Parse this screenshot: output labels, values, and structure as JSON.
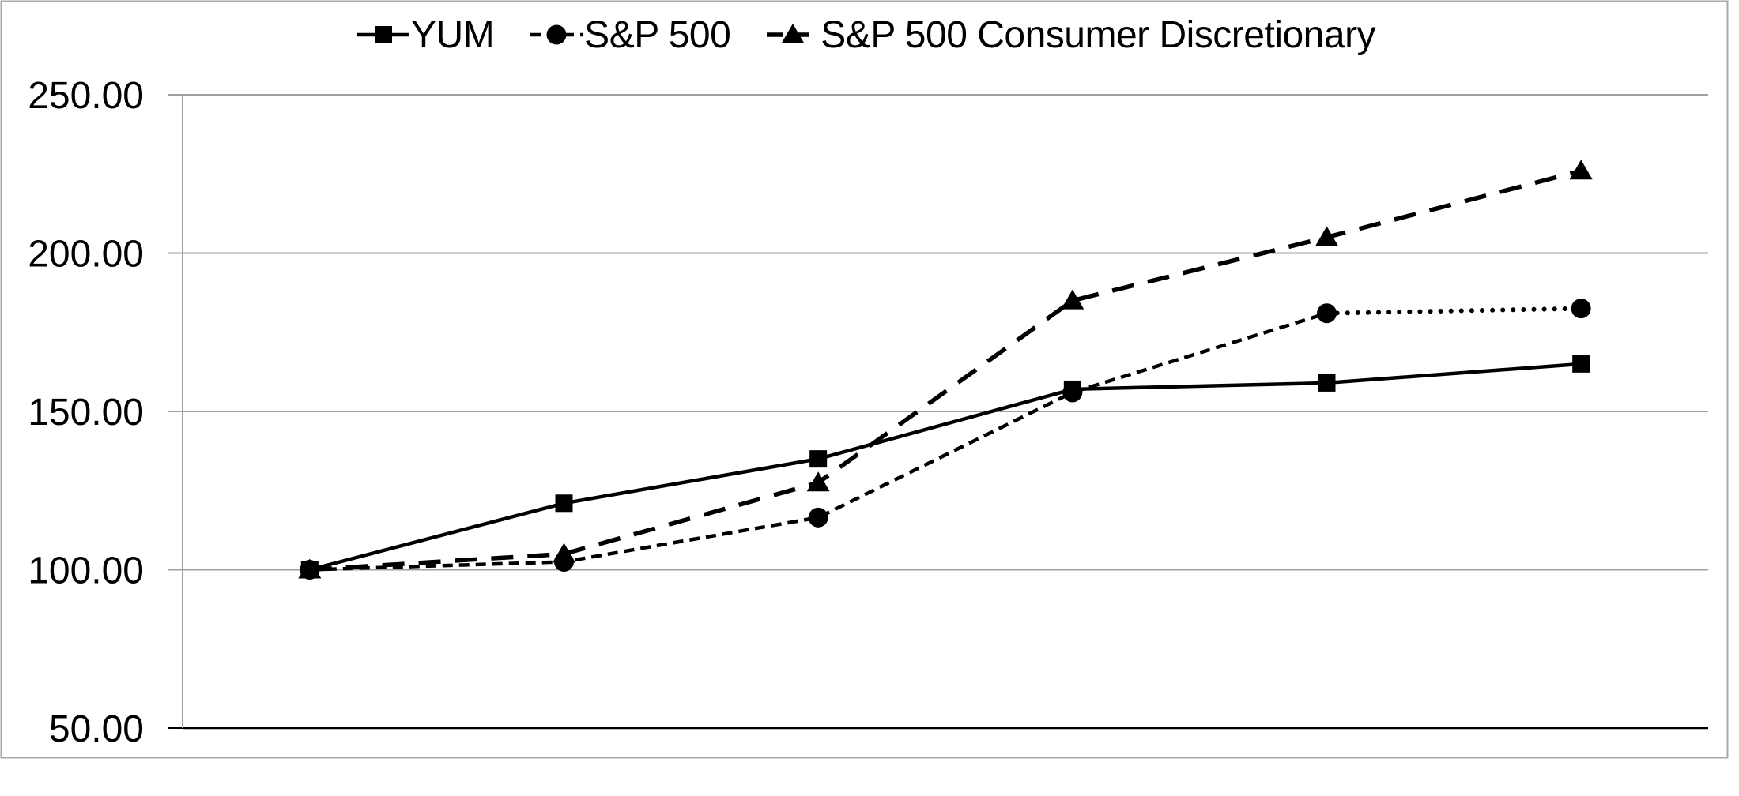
{
  "chart_data": {
    "type": "line",
    "title": "",
    "categories": [
      "",
      "",
      "",
      "",
      "",
      ""
    ],
    "series": [
      {
        "name": "YUM",
        "marker": "square",
        "line_style": "solid",
        "color": "#000000",
        "values": [
          100.0,
          121.0,
          135.0,
          157.0,
          159.0,
          165.0
        ]
      },
      {
        "name": "S&P 500",
        "marker": "circle",
        "line_style": "short-dash",
        "last_segment_style": "dotted",
        "color": "#000000",
        "values": [
          100.0,
          102.5,
          116.5,
          156.0,
          181.0,
          182.5
        ]
      },
      {
        "name": "S&P 500 Consumer Discretionary",
        "marker": "triangle",
        "line_style": "long-dash",
        "color": "#000000",
        "values": [
          100.0,
          105.0,
          127.5,
          185.0,
          205.0,
          226.0
        ]
      }
    ],
    "ylim": [
      50,
      250
    ],
    "y_ticks": [
      {
        "value": 250,
        "label": "250.00"
      },
      {
        "value": 200,
        "label": "200.00"
      },
      {
        "value": 150,
        "label": "150.00"
      },
      {
        "value": 100,
        "label": "100.00"
      },
      {
        "value": 50,
        "label": "50.00"
      }
    ],
    "xlabel": "",
    "ylabel": "",
    "grid": "horizontal",
    "legend_position": "top",
    "colors": {
      "series": "#000000",
      "grid": "#A0A0A0",
      "axis": "#000000",
      "border": "#A8A8A8",
      "background": "#FFFFFF"
    }
  }
}
